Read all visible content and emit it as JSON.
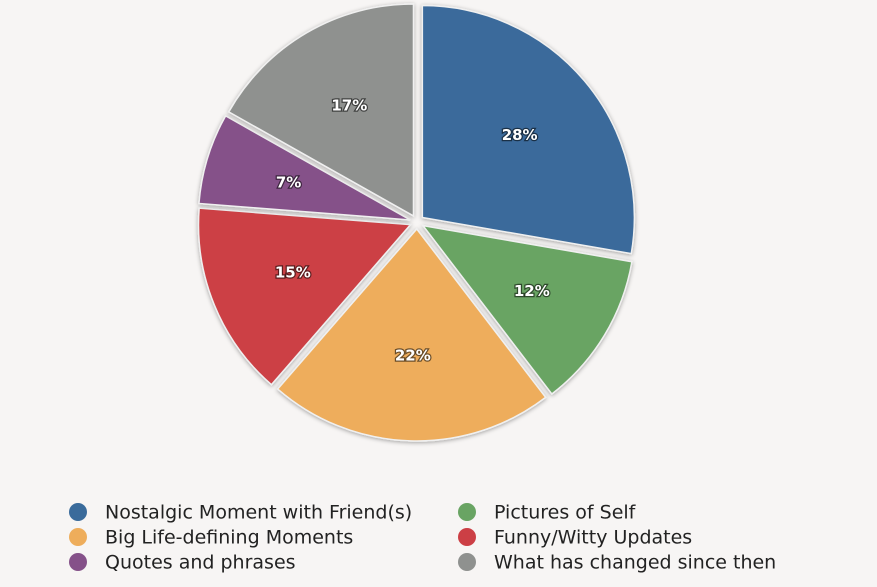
{
  "chart_data": {
    "type": "pie",
    "categories": [
      "Nostalgic Moment with Friend(s)",
      "Pictures of Self",
      "Big Life-defining Moments",
      "Funny/Witty Updates",
      "Quotes and phrases",
      "What has changed since then"
    ],
    "values": [
      28,
      12,
      22,
      15,
      7,
      17
    ],
    "value_labels": [
      "28%",
      "12%",
      "22%",
      "15%",
      "7%",
      "17%"
    ],
    "colors": [
      "#3a6b9b",
      "#69a463",
      "#eead5b",
      "#cc3f45",
      "#855189",
      "#8f918f"
    ]
  }
}
